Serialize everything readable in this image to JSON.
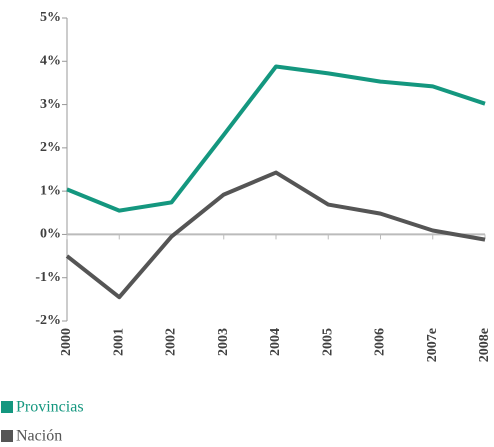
{
  "chart_data": {
    "type": "line",
    "categories": [
      "2000",
      "2001",
      "2002",
      "2003",
      "2004",
      "2005",
      "2006",
      "2007e",
      "2008e"
    ],
    "series": [
      {
        "name": "Provincias",
        "color": "#14977f",
        "values": [
          1.04,
          0.55,
          0.74,
          2.3,
          3.88,
          3.72,
          3.53,
          3.42,
          3.02
        ]
      },
      {
        "name": "Nación",
        "color": "#555555",
        "values": [
          -0.5,
          -1.45,
          -0.05,
          0.92,
          1.43,
          0.69,
          0.48,
          0.09,
          -0.12
        ]
      }
    ],
    "ylim": [
      -2,
      5
    ],
    "yticks": [
      {
        "value": -2,
        "label": "-2%"
      },
      {
        "value": -1,
        "label": "-1%"
      },
      {
        "value": 0,
        "label": "0%"
      },
      {
        "value": 1,
        "label": "1%"
      },
      {
        "value": 2,
        "label": "2%"
      },
      {
        "value": 3,
        "label": "3%"
      },
      {
        "value": 4,
        "label": "4%"
      },
      {
        "value": 5,
        "label": "5%"
      }
    ],
    "grid": false
  }
}
